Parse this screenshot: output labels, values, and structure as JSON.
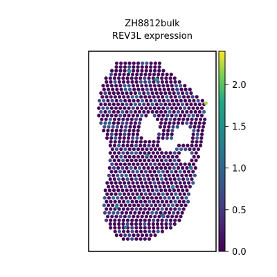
{
  "chart_data": {
    "type": "scatter",
    "title": [
      "ZH8812bulk",
      "REV3L expression"
    ],
    "xlabel": "",
    "ylabel": "",
    "colormap": "viridis",
    "value_range": [
      0,
      2.4
    ],
    "colorbar": {
      "ticks": [
        0.0,
        0.5,
        1.0,
        1.5,
        2.0
      ],
      "tick_labels": [
        "0.0",
        "0.5",
        "1.0",
        "1.5",
        "2.0"
      ]
    },
    "grid": false,
    "tissue_outline_rows": [
      {
        "y": 0.06,
        "x0": 0.22,
        "x1": 0.56
      },
      {
        "y": 0.1,
        "x0": 0.18,
        "x1": 0.62
      },
      {
        "y": 0.14,
        "x0": 0.13,
        "x1": 0.7
      },
      {
        "y": 0.2,
        "x0": 0.1,
        "x1": 0.82
      },
      {
        "y": 0.26,
        "x0": 0.08,
        "x1": 0.92
      },
      {
        "y": 0.33,
        "x0": 0.08,
        "x1": 0.92
      },
      {
        "y": 0.4,
        "x0": 0.12,
        "x1": 0.92
      },
      {
        "y": 0.47,
        "x0": 0.17,
        "x1": 0.88
      },
      {
        "y": 0.54,
        "x0": 0.17,
        "x1": 0.86
      },
      {
        "y": 0.62,
        "x0": 0.16,
        "x1": 0.84
      },
      {
        "y": 0.7,
        "x0": 0.13,
        "x1": 0.8
      },
      {
        "y": 0.78,
        "x0": 0.12,
        "x1": 0.78
      },
      {
        "y": 0.85,
        "x0": 0.14,
        "x1": 0.74
      },
      {
        "y": 0.91,
        "x0": 0.2,
        "x1": 0.58
      },
      {
        "y": 0.94,
        "x0": 0.26,
        "x1": 0.5
      }
    ],
    "holes": [
      {
        "cx": 0.48,
        "cy": 0.38,
        "rx": 0.08,
        "ry": 0.06
      },
      {
        "cx": 0.74,
        "cy": 0.42,
        "rx": 0.08,
        "ry": 0.05
      },
      {
        "cx": 0.62,
        "cy": 0.47,
        "rx": 0.06,
        "ry": 0.03
      },
      {
        "cx": 0.76,
        "cy": 0.52,
        "rx": 0.05,
        "ry": 0.03
      }
    ],
    "background_value": 0.1,
    "mid_fraction": 0.22,
    "mid_range": [
      0.45,
      0.95
    ],
    "high_points": [
      {
        "x": 0.32,
        "y": 0.1,
        "v": 1.6
      },
      {
        "x": 0.53,
        "y": 0.14,
        "v": 1.8
      },
      {
        "x": 0.92,
        "y": 0.26,
        "v": 2.2
      },
      {
        "x": 0.46,
        "y": 0.52,
        "v": 1.5
      },
      {
        "x": 0.8,
        "y": 0.58,
        "v": 1.2
      },
      {
        "x": 0.4,
        "y": 0.73,
        "v": 1.4
      },
      {
        "x": 0.22,
        "y": 0.78,
        "v": 1.6
      },
      {
        "x": 0.66,
        "y": 0.68,
        "v": 1.3
      },
      {
        "x": 0.29,
        "y": 0.88,
        "v": 1.3
      },
      {
        "x": 0.58,
        "y": 0.82,
        "v": 1.2
      }
    ]
  }
}
